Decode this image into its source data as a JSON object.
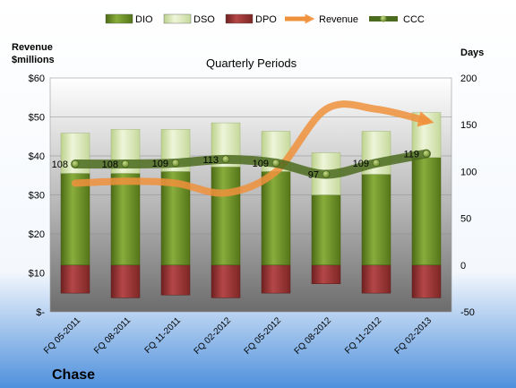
{
  "company": "Chase",
  "chart_data": {
    "type": "bar",
    "title": "Quarterly Periods",
    "left_axis_label_line1": "Revenue",
    "left_axis_label_line2": "$millions",
    "right_axis_label": "Days",
    "left_ylim": [
      0,
      60
    ],
    "left_ticks": [
      "$-",
      "$10",
      "$20",
      "$30",
      "$40",
      "$50",
      "$60"
    ],
    "right_ylim": [
      -50,
      200
    ],
    "right_ticks": [
      "-50",
      "0",
      "50",
      "100",
      "150",
      "200"
    ],
    "categories": [
      "FQ 05-2011",
      "FQ 08-2011",
      "FQ 11-2011",
      "FQ 02-2012",
      "FQ 05-2012",
      "FQ 08-2012",
      "FQ 11-2012",
      "FQ 02-2013"
    ],
    "legend_position": "top",
    "grid": true,
    "series": [
      {
        "name": "DIO",
        "kind": "bar",
        "axis": "days",
        "values": [
          98,
          98,
          100,
          105,
          100,
          75,
          97,
          115
        ],
        "color": "#6e8e2a"
      },
      {
        "name": "DSO",
        "kind": "bar",
        "axis": "days",
        "values": [
          43,
          47,
          45,
          47,
          43,
          45,
          46,
          48
        ],
        "color": "#d9e8b4"
      },
      {
        "name": "DPO",
        "kind": "bar",
        "axis": "days",
        "values": [
          -30,
          -35,
          -32,
          -35,
          -30,
          -20,
          -30,
          -35
        ],
        "color": "#9b3535"
      },
      {
        "name": "Revenue",
        "kind": "line",
        "axis": "revenue",
        "values": [
          33,
          33.5,
          33,
          30.5,
          36,
          52,
          52,
          49
        ],
        "color": "#f0913c"
      },
      {
        "name": "CCC",
        "kind": "line",
        "axis": "days",
        "values": [
          108,
          108,
          109,
          113,
          109,
          97,
          109,
          119
        ],
        "labels": [
          "108",
          "108",
          "109",
          "113",
          "109",
          "97",
          "109",
          "119"
        ],
        "color": "#4b6b1e"
      }
    ]
  }
}
